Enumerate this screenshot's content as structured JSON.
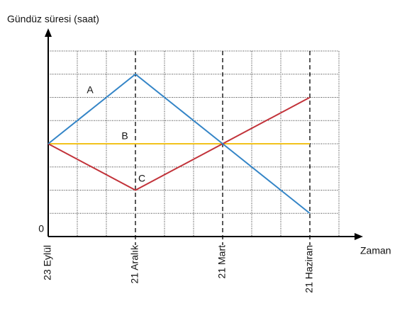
{
  "chart_data": {
    "type": "line",
    "y_label": "Gündüz süresi (saat)",
    "x_label": "Zaman",
    "x": [
      0,
      3,
      6,
      9
    ],
    "xlim": [
      0,
      10
    ],
    "xticks": [
      {
        "value": 0,
        "label": "23 Eylül"
      },
      {
        "value": 3,
        "label": "21 Aralık"
      },
      {
        "value": 6,
        "label": "21 Mart"
      },
      {
        "value": 9,
        "label": "21 Haziran"
      }
    ],
    "ylim": [
      0,
      8
    ],
    "yticks": [
      0
    ],
    "xgrid": [
      1,
      2,
      3,
      4,
      5,
      6,
      7,
      8,
      9,
      10
    ],
    "ygrid": [
      1,
      2,
      3,
      4,
      5,
      6,
      7,
      8
    ],
    "series": [
      {
        "name": "A",
        "color": "#3485c7",
        "values": [
          4,
          7,
          4,
          1
        ]
      },
      {
        "name": "B",
        "color": "#f2c21c",
        "values": [
          4,
          4,
          4,
          4
        ]
      },
      {
        "name": "C",
        "color": "#c2333a",
        "values": [
          4,
          2,
          4,
          6
        ]
      }
    ]
  }
}
